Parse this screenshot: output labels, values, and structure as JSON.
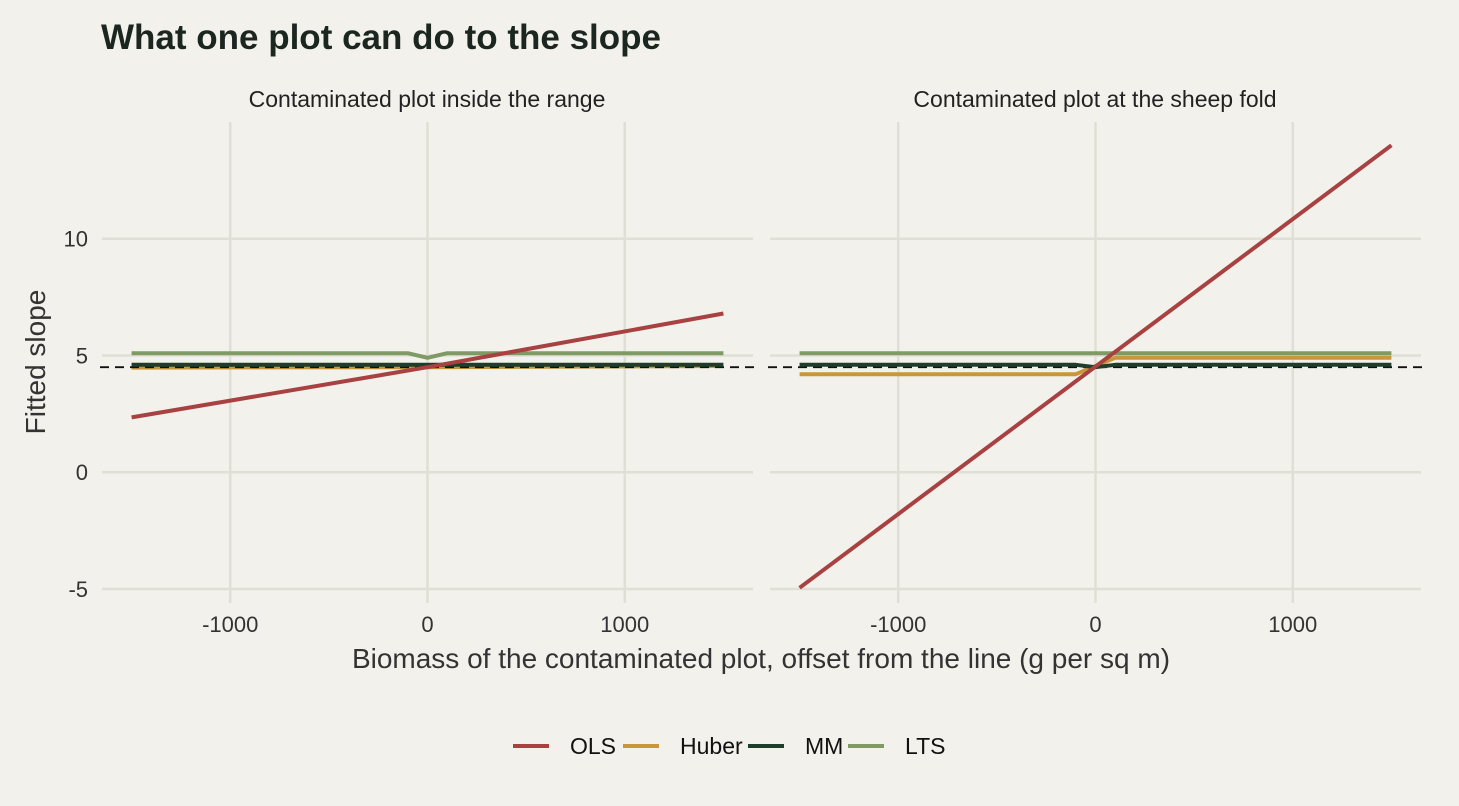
{
  "chart_data": {
    "type": "line",
    "title": "What one plot can do to the slope",
    "xlabel": "Biomass of the contaminated plot, offset from the line (g per sq m)",
    "ylabel": "Fitted slope",
    "xlim": [
      -1650,
      1650
    ],
    "ylim": [
      -5.6,
      15
    ],
    "x_ticks": [
      -1000,
      0,
      1000
    ],
    "y_ticks": [
      -5,
      0,
      5,
      10
    ],
    "reference_line": 4.5,
    "grid": true,
    "legend_position": "bottom",
    "legend": [
      "OLS",
      "Huber",
      "MM",
      "LTS"
    ],
    "colors": {
      "OLS": "#a84141",
      "Huber": "#c9963a",
      "MM": "#1f3d2b",
      "LTS": "#7f9a64"
    },
    "panels": [
      {
        "name": "Contaminated plot inside the range",
        "series": [
          {
            "name": "OLS",
            "x": [
              -1500,
              0,
              1500
            ],
            "y": [
              2.35,
              4.5,
              6.8
            ]
          },
          {
            "name": "Huber",
            "x": [
              -1500,
              0,
              1500
            ],
            "y": [
              4.48,
              4.5,
              4.55
            ]
          },
          {
            "name": "MM",
            "x": [
              -1500,
              0,
              1500
            ],
            "y": [
              4.6,
              4.6,
              4.6
            ]
          },
          {
            "name": "LTS",
            "x": [
              -1500,
              -100,
              0,
              100,
              1500
            ],
            "y": [
              5.1,
              5.1,
              4.9,
              5.1,
              5.1
            ]
          }
        ]
      },
      {
        "name": "Contaminated plot at the sheep fold",
        "series": [
          {
            "name": "OLS",
            "x": [
              -1500,
              1500
            ],
            "y": [
              -4.95,
              14.0
            ]
          },
          {
            "name": "Huber",
            "x": [
              -1500,
              -100,
              100,
              1500
            ],
            "y": [
              4.2,
              4.2,
              4.9,
              4.9
            ]
          },
          {
            "name": "MM",
            "x": [
              -1500,
              -100,
              0,
              100,
              1500
            ],
            "y": [
              4.6,
              4.6,
              4.5,
              4.6,
              4.6
            ]
          },
          {
            "name": "LTS",
            "x": [
              -1500,
              1500
            ],
            "y": [
              5.1,
              5.1
            ]
          }
        ]
      }
    ]
  }
}
